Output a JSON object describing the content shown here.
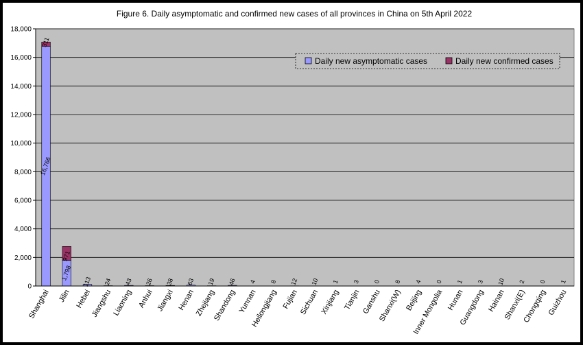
{
  "chart_data": {
    "type": "bar",
    "stacked": true,
    "title": "Figure 6. Daily asymptomatic and confirmed new cases of all provinces in China on 5th April 2022",
    "xlabel": "",
    "ylabel": "",
    "ylim": [
      0,
      18000
    ],
    "yticks": [
      "0",
      "2,000",
      "4,000",
      "6,000",
      "8,000",
      "10,000",
      "12,000",
      "14,000",
      "16,000",
      "18,000"
    ],
    "ytick_values": [
      0,
      2000,
      4000,
      6000,
      8000,
      10000,
      12000,
      14000,
      16000,
      18000
    ],
    "grid": true,
    "legend_position": "top-right",
    "categories": [
      "Shanghai",
      "Jilin",
      "Hebei",
      "Jiangshu",
      "Liaoning",
      "Anhui",
      "Jiangxi",
      "Henan",
      "Zhejiang",
      "Shandong",
      "Yunnan",
      "Heilongjiang",
      "Fujian",
      "Sichuan",
      "Xinjiang",
      "Tianjin",
      "Ganshu",
      "Shanxi(W)",
      "Beijing",
      "Inner Mongolia",
      "Hunan",
      "Guangdong",
      "Hainan",
      "Shanxi(E)",
      "Chongqing",
      "Guizhou"
    ],
    "series": [
      {
        "name": "Daily new asymptomatic cases",
        "color": "#9999ff",
        "values": [
          16766,
          1798,
          113,
          24,
          43,
          26,
          38,
          63,
          19,
          46,
          4,
          8,
          12,
          10,
          1,
          3,
          0,
          8,
          4,
          0,
          1,
          3,
          10,
          2,
          0,
          1
        ],
        "labels": [
          "16,766",
          "1,798",
          "113",
          "24",
          "43",
          "26",
          "38",
          "63",
          "19",
          "46",
          "4",
          "8",
          "12",
          "10",
          "1",
          "3",
          "0",
          "8",
          "4",
          "0",
          "1",
          "3",
          "10",
          "2",
          "0",
          "1"
        ]
      },
      {
        "name": "Daily new confirmed cases",
        "color": "#993366",
        "values": [
          311,
          971,
          0,
          0,
          0,
          0,
          0,
          0,
          0,
          0,
          0,
          0,
          0,
          0,
          0,
          0,
          0,
          0,
          0,
          0,
          0,
          0,
          0,
          0,
          0,
          0
        ],
        "labels": [
          "311",
          "971",
          "",
          "",
          "",
          "",
          "",
          "",
          "",
          "",
          "",
          "",
          "",
          "",
          "",
          "",
          "",
          "",
          "",
          "",
          "",
          "",
          "",
          "",
          "",
          ""
        ]
      }
    ]
  }
}
